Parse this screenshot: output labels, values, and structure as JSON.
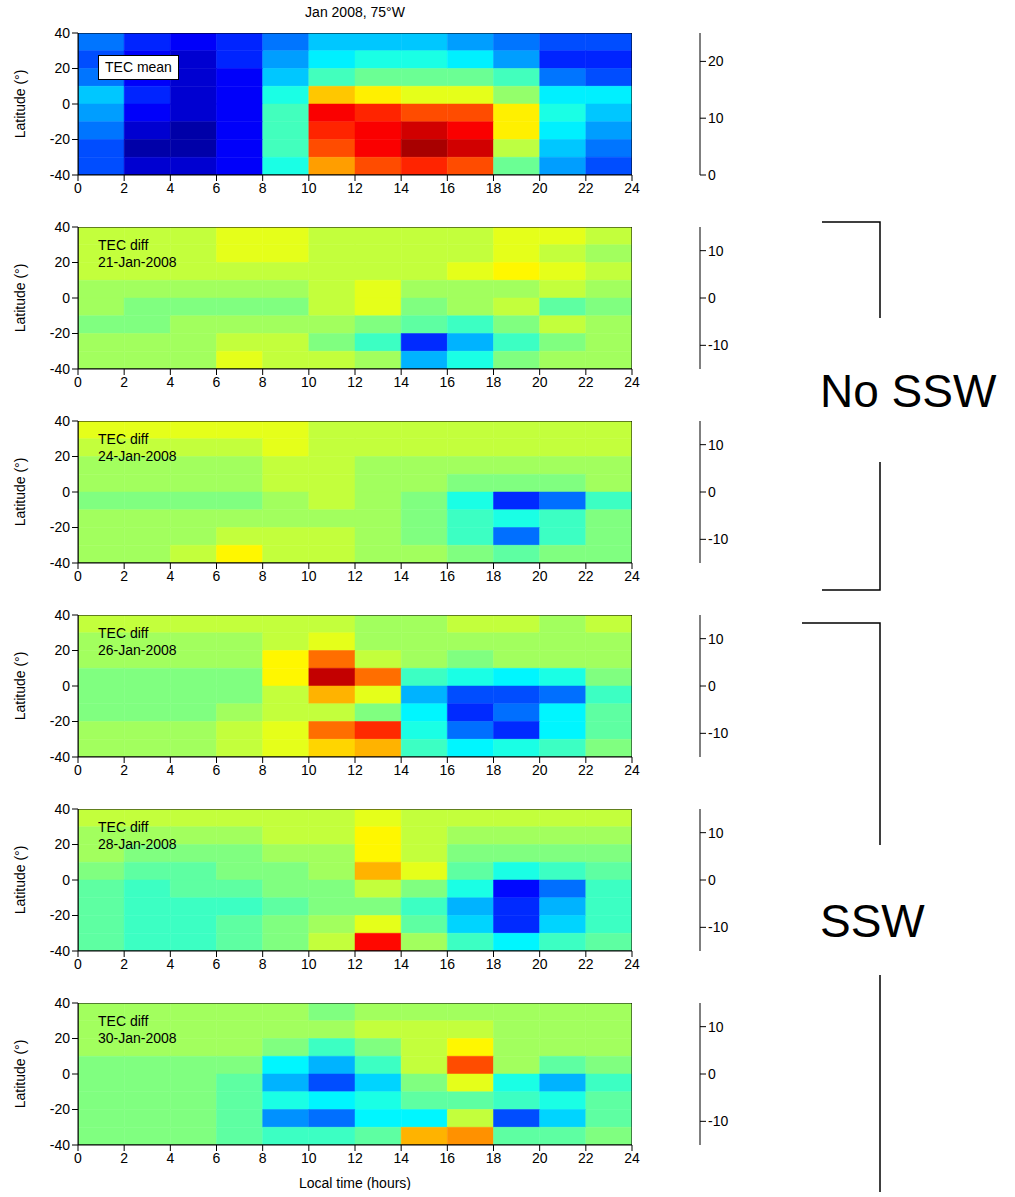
{
  "title": "Jan 2008, 75°W",
  "annotations": [
    {
      "text": "No SSW"
    },
    {
      "text": "SSW"
    }
  ],
  "chart_data": [
    {
      "type": "heatmap",
      "panel_label": [
        "TEC mean"
      ],
      "ylabel": "Latitude (°)",
      "x": [
        1,
        3,
        5,
        7,
        9,
        11,
        13,
        15,
        17,
        19,
        21,
        23
      ],
      "y": [
        35,
        25,
        15,
        5,
        -5,
        -15,
        -25,
        -35
      ],
      "xlim": [
        0,
        24
      ],
      "xticks": [
        0,
        2,
        4,
        6,
        8,
        10,
        12,
        14,
        16,
        18,
        20,
        22,
        24
      ],
      "ylim": [
        -40,
        40
      ],
      "yticks": [
        -40,
        -20,
        0,
        20,
        40
      ],
      "colorbar_range": [
        0,
        25
      ],
      "colorbar_ticks": [
        0,
        10,
        20
      ],
      "cells": [
        [
          6,
          4,
          3,
          4,
          6,
          8,
          8,
          8,
          7,
          6,
          5,
          5
        ],
        [
          5,
          3,
          2,
          4,
          7,
          9,
          10,
          10,
          9,
          7,
          4,
          4
        ],
        [
          6,
          3,
          2,
          3,
          8,
          11,
          12,
          12,
          12,
          11,
          6,
          5
        ],
        [
          8,
          4,
          2,
          3,
          10,
          17,
          16,
          15,
          15,
          13,
          9,
          9
        ],
        [
          7,
          3,
          2,
          3,
          11,
          22,
          21,
          20,
          20,
          16,
          10,
          8
        ],
        [
          6,
          2,
          1,
          3,
          11,
          21,
          22,
          23,
          22,
          16,
          9,
          7
        ],
        [
          5,
          1,
          1,
          3,
          11,
          20,
          22,
          24,
          23,
          14,
          8,
          6
        ],
        [
          5,
          2,
          2,
          3,
          10,
          18,
          20,
          21,
          20,
          12,
          7,
          5
        ]
      ]
    },
    {
      "type": "heatmap",
      "panel_label": [
        "TEC diff",
        "21-Jan-2008"
      ],
      "ylabel": "Latitude (°)",
      "x": [
        1,
        3,
        5,
        7,
        9,
        11,
        13,
        15,
        17,
        19,
        21,
        23
      ],
      "y": [
        35,
        25,
        15,
        5,
        -5,
        -15,
        -25,
        -35
      ],
      "xlim": [
        0,
        24
      ],
      "xticks": [
        0,
        2,
        4,
        6,
        8,
        10,
        12,
        14,
        16,
        18,
        20,
        22,
        24
      ],
      "ylim": [
        -40,
        40
      ],
      "yticks": [
        -40,
        -20,
        0,
        20,
        40
      ],
      "colorbar_range": [
        -15,
        15
      ],
      "colorbar_ticks": [
        -10,
        0,
        10
      ],
      "cells": [
        [
          2,
          2,
          2,
          3,
          3,
          2,
          2,
          2,
          2,
          3,
          3,
          2
        ],
        [
          2,
          2,
          2,
          3,
          3,
          2,
          2,
          2,
          2,
          3,
          2,
          1
        ],
        [
          2,
          2,
          2,
          2,
          2,
          2,
          2,
          2,
          3,
          4,
          3,
          2
        ],
        [
          1,
          1,
          1,
          1,
          1,
          2,
          3,
          1,
          1,
          1,
          2,
          1
        ],
        [
          1,
          0,
          0,
          0,
          0,
          2,
          3,
          0,
          1,
          2,
          -1,
          0
        ],
        [
          0,
          0,
          1,
          1,
          1,
          1,
          0,
          -1,
          -2,
          0,
          2,
          1
        ],
        [
          1,
          1,
          1,
          2,
          2,
          0,
          -2,
          -10,
          -6,
          -2,
          0,
          1
        ],
        [
          1,
          1,
          1,
          3,
          2,
          2,
          1,
          -6,
          -3,
          0,
          1,
          1
        ]
      ]
    },
    {
      "type": "heatmap",
      "panel_label": [
        "TEC diff",
        "24-Jan-2008"
      ],
      "ylabel": "Latitude (°)",
      "x": [
        1,
        3,
        5,
        7,
        9,
        11,
        13,
        15,
        17,
        19,
        21,
        23
      ],
      "y": [
        35,
        25,
        15,
        5,
        -5,
        -15,
        -25,
        -35
      ],
      "xlim": [
        0,
        24
      ],
      "xticks": [
        0,
        2,
        4,
        6,
        8,
        10,
        12,
        14,
        16,
        18,
        20,
        22,
        24
      ],
      "ylim": [
        -40,
        40
      ],
      "yticks": [
        -40,
        -20,
        0,
        20,
        40
      ],
      "colorbar_range": [
        -15,
        15
      ],
      "colorbar_ticks": [
        -10,
        0,
        10
      ],
      "cells": [
        [
          3,
          3,
          3,
          3,
          3,
          2,
          2,
          2,
          2,
          2,
          2,
          2
        ],
        [
          2,
          2,
          2,
          2,
          3,
          2,
          2,
          2,
          2,
          2,
          2,
          2
        ],
        [
          1,
          1,
          1,
          1,
          2,
          2,
          1,
          1,
          1,
          1,
          1,
          1
        ],
        [
          1,
          1,
          1,
          1,
          2,
          2,
          1,
          1,
          0,
          0,
          0,
          1
        ],
        [
          0,
          0,
          0,
          0,
          1,
          2,
          1,
          0,
          -3,
          -10,
          -8,
          -2
        ],
        [
          1,
          1,
          1,
          1,
          1,
          1,
          1,
          0,
          -2,
          -3,
          -2,
          0
        ],
        [
          1,
          1,
          1,
          2,
          2,
          2,
          1,
          0,
          -2,
          -8,
          -2,
          0
        ],
        [
          1,
          1,
          2,
          4,
          2,
          2,
          1,
          1,
          0,
          -1,
          0,
          0
        ]
      ]
    },
    {
      "type": "heatmap",
      "panel_label": [
        "TEC diff",
        "26-Jan-2008"
      ],
      "ylabel": "Latitude (°)",
      "x": [
        1,
        3,
        5,
        7,
        9,
        11,
        13,
        15,
        17,
        19,
        21,
        23
      ],
      "y": [
        35,
        25,
        15,
        5,
        -5,
        -15,
        -25,
        -35
      ],
      "xlim": [
        0,
        24
      ],
      "xticks": [
        0,
        2,
        4,
        6,
        8,
        10,
        12,
        14,
        16,
        18,
        20,
        22,
        24
      ],
      "ylim": [
        -40,
        40
      ],
      "yticks": [
        -40,
        -20,
        0,
        20,
        40
      ],
      "colorbar_range": [
        -15,
        15
      ],
      "colorbar_ticks": [
        -10,
        0,
        10
      ],
      "cells": [
        [
          2,
          2,
          2,
          2,
          2,
          2,
          1,
          1,
          2,
          2,
          1,
          2
        ],
        [
          1,
          1,
          1,
          1,
          2,
          3,
          1,
          1,
          1,
          1,
          1,
          1
        ],
        [
          1,
          1,
          1,
          1,
          4,
          8,
          2,
          1,
          0,
          1,
          1,
          1
        ],
        [
          0,
          0,
          0,
          0,
          4,
          13,
          8,
          -2,
          -3,
          -4,
          -3,
          0
        ],
        [
          0,
          0,
          0,
          0,
          2,
          6,
          3,
          -6,
          -9,
          -9,
          -8,
          -2
        ],
        [
          0,
          0,
          0,
          1,
          2,
          2,
          0,
          -4,
          -10,
          -8,
          -4,
          -1
        ],
        [
          1,
          1,
          1,
          2,
          3,
          8,
          10,
          -3,
          -8,
          -10,
          -4,
          -1
        ],
        [
          1,
          1,
          1,
          2,
          3,
          5,
          6,
          -2,
          -4,
          -3,
          -2,
          0
        ]
      ]
    },
    {
      "type": "heatmap",
      "panel_label": [
        "TEC diff",
        "28-Jan-2008"
      ],
      "ylabel": "Latitude (°)",
      "x": [
        1,
        3,
        5,
        7,
        9,
        11,
        13,
        15,
        17,
        19,
        21,
        23
      ],
      "y": [
        35,
        25,
        15,
        5,
        -5,
        -15,
        -25,
        -35
      ],
      "xlim": [
        0,
        24
      ],
      "xticks": [
        0,
        2,
        4,
        6,
        8,
        10,
        12,
        14,
        16,
        18,
        20,
        22,
        24
      ],
      "ylim": [
        -40,
        40
      ],
      "yticks": [
        -40,
        -20,
        0,
        20,
        40
      ],
      "colorbar_range": [
        -15,
        15
      ],
      "colorbar_ticks": [
        -10,
        0,
        10
      ],
      "cells": [
        [
          2,
          2,
          2,
          2,
          2,
          2,
          3,
          2,
          2,
          2,
          2,
          2
        ],
        [
          1,
          1,
          1,
          1,
          2,
          2,
          4,
          2,
          1,
          1,
          1,
          1
        ],
        [
          1,
          0,
          0,
          0,
          1,
          1,
          4,
          2,
          0,
          0,
          0,
          0
        ],
        [
          0,
          -1,
          -1,
          0,
          0,
          1,
          6,
          3,
          -1,
          -3,
          -2,
          -1
        ],
        [
          -1,
          -2,
          -1,
          -1,
          0,
          0,
          2,
          0,
          -3,
          -11,
          -8,
          -2
        ],
        [
          -1,
          -2,
          -2,
          -2,
          -1,
          0,
          0,
          -2,
          -6,
          -10,
          -6,
          -2
        ],
        [
          -1,
          -2,
          -2,
          -1,
          0,
          1,
          3,
          -1,
          -5,
          -10,
          -5,
          -2
        ],
        [
          -1,
          -2,
          -2,
          -1,
          0,
          2,
          11,
          1,
          -2,
          -4,
          -2,
          -1
        ]
      ]
    },
    {
      "type": "heatmap",
      "panel_label": [
        "TEC diff",
        "30-Jan-2008"
      ],
      "ylabel": "Latitude (°)",
      "xlabel": "Local time (hours)",
      "x": [
        1,
        3,
        5,
        7,
        9,
        11,
        13,
        15,
        17,
        19,
        21,
        23
      ],
      "y": [
        35,
        25,
        15,
        5,
        -5,
        -15,
        -25,
        -35
      ],
      "xlim": [
        0,
        24
      ],
      "xticks": [
        0,
        2,
        4,
        6,
        8,
        10,
        12,
        14,
        16,
        18,
        20,
        22,
        24
      ],
      "ylim": [
        -40,
        40
      ],
      "yticks": [
        -40,
        -20,
        0,
        20,
        40
      ],
      "colorbar_range": [
        -15,
        15
      ],
      "colorbar_ticks": [
        -10,
        0,
        10
      ],
      "cells": [
        [
          1,
          1,
          1,
          1,
          1,
          0,
          1,
          1,
          1,
          1,
          1,
          1
        ],
        [
          1,
          1,
          1,
          1,
          1,
          1,
          2,
          2,
          2,
          1,
          1,
          1
        ],
        [
          1,
          1,
          1,
          1,
          0,
          -2,
          0,
          2,
          4,
          1,
          1,
          1
        ],
        [
          0,
          0,
          0,
          0,
          -4,
          -6,
          -2,
          2,
          9,
          1,
          -1,
          0
        ],
        [
          0,
          0,
          0,
          -1,
          -6,
          -9,
          -5,
          0,
          3,
          -3,
          -6,
          -2
        ],
        [
          0,
          0,
          0,
          -1,
          -3,
          -4,
          -3,
          -1,
          -1,
          -2,
          -3,
          -1
        ],
        [
          0,
          0,
          0,
          -1,
          -7,
          -8,
          -4,
          -4,
          2,
          -9,
          -5,
          -1
        ],
        [
          0,
          0,
          0,
          -1,
          -2,
          -2,
          -1,
          6,
          7,
          -1,
          -1,
          0
        ]
      ]
    }
  ]
}
